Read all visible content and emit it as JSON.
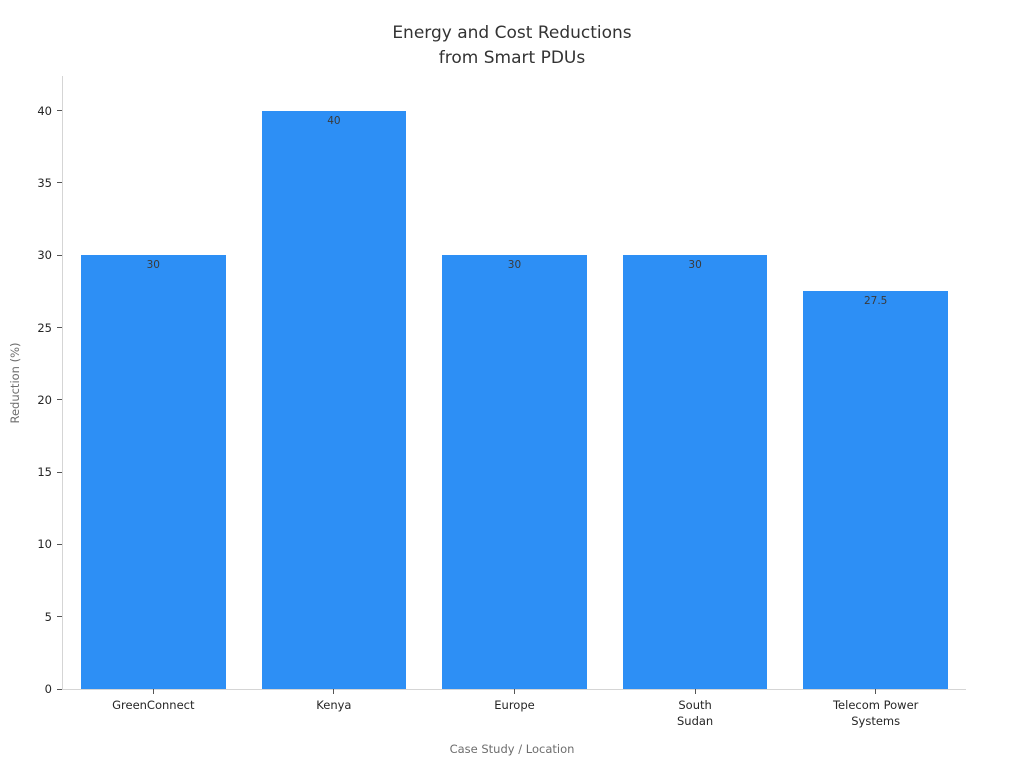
{
  "chart_data": {
    "type": "bar",
    "title": "Energy and Cost Reductions\nfrom Smart PDUs",
    "xlabel": "Case Study / Location",
    "ylabel": "Reduction (%)",
    "categories": [
      "GreenConnect",
      "Kenya",
      "Europe",
      "South\nSudan",
      "Telecom Power\nSystems"
    ],
    "values": [
      30,
      40,
      30,
      30,
      27.5
    ],
    "value_labels": [
      "30",
      "40",
      "30",
      "30",
      "27.5"
    ],
    "yticks": [
      0,
      5,
      10,
      15,
      20,
      25,
      30,
      35,
      40
    ],
    "ylim": [
      0,
      42.4
    ],
    "bar_width_frac": 0.8,
    "grid": false,
    "legend": null,
    "colors": {
      "bar": "#2d8ff5",
      "background": "#ffffff",
      "title": "#333333",
      "tick_label": "#262626",
      "tick_mark": "#555555",
      "axis_label": "#6e6e6e",
      "spine": "#d5d5d5",
      "value_label": "#3a3a3a"
    }
  }
}
